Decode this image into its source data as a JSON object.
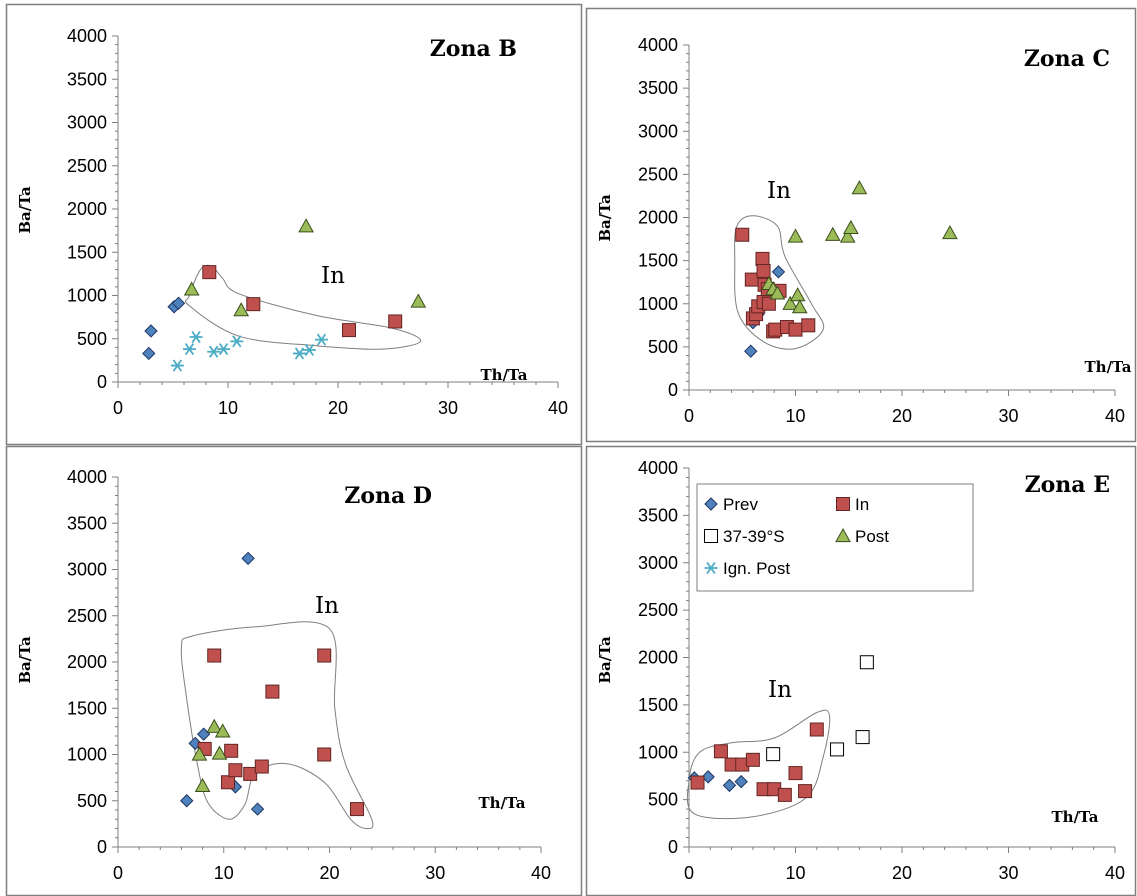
{
  "legend": [
    {
      "key": "prev",
      "label": "Prev"
    },
    {
      "key": "in",
      "label": "In"
    },
    {
      "key": "s3739",
      "label": "37-39°S"
    },
    {
      "key": "post",
      "label": "Post"
    },
    {
      "key": "ign",
      "label": "Ign. Post"
    }
  ],
  "styles": {
    "prev": {
      "fill": "#4f81bd",
      "stroke": "#1f3864",
      "marker": "diamond"
    },
    "in": {
      "fill": "#c0504d",
      "stroke": "#632523",
      "marker": "square"
    },
    "s3739": {
      "fill": "#ffffff",
      "stroke": "#000000",
      "marker": "square"
    },
    "post": {
      "fill": "#9bbb59",
      "stroke": "#3a4f1c",
      "marker": "triangle"
    },
    "ign": {
      "fill": "none",
      "stroke": "#4bacc6",
      "marker": "asterisk"
    }
  },
  "chart_data": [
    {
      "type": "scatter",
      "title": "Zona B",
      "xlabel": "Th/Ta",
      "ylabel": "Ba/Ta",
      "xlim": [
        0,
        40
      ],
      "ylim": [
        0,
        4000
      ],
      "xticks": [
        0,
        10,
        20,
        30,
        40
      ],
      "yticks": [
        0,
        500,
        1000,
        1500,
        2000,
        2500,
        3000,
        3500,
        4000
      ],
      "region_label": "In",
      "region_outline": [
        [
          9.5,
          1200
        ],
        [
          11,
          1020
        ],
        [
          18,
          770
        ],
        [
          25,
          620
        ],
        [
          27.5,
          470
        ],
        [
          24,
          380
        ],
        [
          18,
          420
        ],
        [
          11,
          530
        ],
        [
          6.5,
          880
        ],
        [
          6.5,
          1000
        ],
        [
          7.5,
          1300
        ],
        [
          8.5,
          1340
        ]
      ],
      "series": [
        {
          "key": "prev",
          "points": [
            [
              2.8,
              330
            ],
            [
              3.0,
              590
            ],
            [
              5.1,
              870
            ],
            [
              5.5,
              910
            ]
          ]
        },
        {
          "key": "in",
          "points": [
            [
              8.3,
              1270
            ],
            [
              12.3,
              900
            ],
            [
              21.0,
              600
            ],
            [
              25.2,
              700
            ]
          ]
        },
        {
          "key": "post",
          "points": [
            [
              6.7,
              1070
            ],
            [
              11.2,
              830
            ],
            [
              17.1,
              1800
            ],
            [
              27.3,
              930
            ]
          ]
        },
        {
          "key": "ign",
          "points": [
            [
              5.4,
              190
            ],
            [
              6.5,
              380
            ],
            [
              7.1,
              520
            ],
            [
              8.7,
              350
            ],
            [
              9.6,
              380
            ],
            [
              10.8,
              470
            ],
            [
              16.5,
              330
            ],
            [
              17.4,
              370
            ],
            [
              18.5,
              490
            ]
          ]
        }
      ]
    },
    {
      "type": "scatter",
      "title": "Zona C",
      "xlabel": "Th/Ta",
      "ylabel": "Ba/Ta",
      "xlim": [
        0,
        40
      ],
      "ylim": [
        0,
        4000
      ],
      "xticks": [
        0,
        10,
        20,
        30,
        40
      ],
      "yticks": [
        0,
        500,
        1000,
        1500,
        2000,
        2500,
        3000,
        3500,
        4000
      ],
      "region_label": "In",
      "region_outline": [
        [
          6,
          2020
        ],
        [
          8.3,
          1900
        ],
        [
          9,
          1550
        ],
        [
          11.5,
          1000
        ],
        [
          12.6,
          700
        ],
        [
          10,
          480
        ],
        [
          7,
          560
        ],
        [
          4.6,
          900
        ],
        [
          4.3,
          1500
        ],
        [
          4.5,
          1900
        ]
      ],
      "series": [
        {
          "key": "prev",
          "points": [
            [
              5.8,
              450
            ],
            [
              6.0,
              780
            ],
            [
              6.5,
              880
            ],
            [
              8.4,
              1370
            ]
          ]
        },
        {
          "key": "in",
          "points": [
            [
              5.0,
              1800
            ],
            [
              5.9,
              1280
            ],
            [
              6.0,
              830
            ],
            [
              6.3,
              880
            ],
            [
              6.5,
              970
            ],
            [
              6.9,
              1520
            ],
            [
              7.0,
              1380
            ],
            [
              7.1,
              1220
            ],
            [
              7.0,
              1020
            ],
            [
              7.4,
              1170
            ],
            [
              7.5,
              1000
            ],
            [
              7.9,
              680
            ],
            [
              8.1,
              700
            ],
            [
              8.5,
              1150
            ],
            [
              9.2,
              730
            ],
            [
              10.0,
              700
            ],
            [
              11.2,
              750
            ]
          ]
        },
        {
          "key": "post",
          "points": [
            [
              7.5,
              1230
            ],
            [
              7.9,
              1170
            ],
            [
              8.3,
              1120
            ],
            [
              9.5,
              1000
            ],
            [
              10.0,
              1780
            ],
            [
              10.2,
              1100
            ],
            [
              10.4,
              960
            ],
            [
              13.5,
              1800
            ],
            [
              14.9,
              1780
            ],
            [
              15.2,
              1880
            ],
            [
              16.0,
              2340
            ],
            [
              24.5,
              1820
            ]
          ]
        }
      ]
    },
    {
      "type": "scatter",
      "title": "Zona D",
      "xlabel": "Th/Ta",
      "ylabel": "Ba/Ta",
      "xlim": [
        0,
        40
      ],
      "ylim": [
        0,
        4000
      ],
      "xticks": [
        0,
        10,
        20,
        30,
        40
      ],
      "yticks": [
        0,
        500,
        1000,
        1500,
        2000,
        2500,
        3000,
        3500,
        4000
      ],
      "region_label": "In",
      "region_outline": [
        [
          7,
          2280
        ],
        [
          13,
          2380
        ],
        [
          20,
          2360
        ],
        [
          20.5,
          1500
        ],
        [
          21.5,
          900
        ],
        [
          24,
          300
        ],
        [
          23.5,
          200
        ],
        [
          22,
          300
        ],
        [
          19.5,
          700
        ],
        [
          16,
          900
        ],
        [
          13,
          800
        ],
        [
          12,
          460
        ],
        [
          10.5,
          300
        ],
        [
          8.5,
          480
        ],
        [
          7.5,
          900
        ],
        [
          6.5,
          1600
        ],
        [
          6,
          2150
        ]
      ],
      "series": [
        {
          "key": "prev",
          "points": [
            [
              6.5,
              500
            ],
            [
              7.3,
              1120
            ],
            [
              8.1,
              1220
            ],
            [
              11.1,
              650
            ],
            [
              12.3,
              3120
            ],
            [
              13.2,
              410
            ]
          ]
        },
        {
          "key": "in",
          "points": [
            [
              8.2,
              1060
            ],
            [
              9.1,
              2070
            ],
            [
              10.4,
              700
            ],
            [
              10.7,
              1040
            ],
            [
              11.1,
              830
            ],
            [
              12.5,
              790
            ],
            [
              13.6,
              870
            ],
            [
              14.6,
              1680
            ],
            [
              19.5,
              2070
            ],
            [
              19.5,
              1000
            ],
            [
              22.6,
              410
            ]
          ]
        },
        {
          "key": "post",
          "points": [
            [
              7.7,
              1000
            ],
            [
              8.0,
              660
            ],
            [
              9.1,
              1300
            ],
            [
              9.6,
              1010
            ],
            [
              9.9,
              1250
            ]
          ]
        }
      ]
    },
    {
      "type": "scatter",
      "title": "Zona E",
      "xlabel": "Th/Ta",
      "ylabel": "Ba/Ta",
      "xlim": [
        0,
        40
      ],
      "ylim": [
        0,
        4000
      ],
      "xticks": [
        0,
        10,
        20,
        30,
        40
      ],
      "yticks": [
        0,
        500,
        1000,
        1500,
        2000,
        2500,
        3000,
        3500,
        4000
      ],
      "region_label": "In",
      "region_outline": [
        [
          4,
          1100
        ],
        [
          8,
          1150
        ],
        [
          12,
          1420
        ],
        [
          13.2,
          1380
        ],
        [
          12.6,
          950
        ],
        [
          11,
          520
        ],
        [
          6,
          320
        ],
        [
          0.5,
          350
        ],
        [
          0,
          700
        ],
        [
          1,
          1000
        ]
      ],
      "series": [
        {
          "key": "prev",
          "points": [
            [
              0.5,
              730
            ],
            [
              1.8,
              740
            ],
            [
              3.8,
              650
            ],
            [
              4.9,
              690
            ]
          ]
        },
        {
          "key": "in",
          "points": [
            [
              0.8,
              680
            ],
            [
              3.0,
              1010
            ],
            [
              4.0,
              870
            ],
            [
              5.0,
              870
            ],
            [
              6.0,
              920
            ],
            [
              7.0,
              610
            ],
            [
              8.0,
              610
            ],
            [
              9.0,
              550
            ],
            [
              10.0,
              780
            ],
            [
              10.9,
              590
            ],
            [
              12.0,
              1240
            ]
          ]
        },
        {
          "key": "s3739",
          "points": [
            [
              7.9,
              980
            ],
            [
              13.9,
              1030
            ],
            [
              16.3,
              1160
            ],
            [
              16.7,
              1950
            ]
          ]
        }
      ]
    }
  ]
}
